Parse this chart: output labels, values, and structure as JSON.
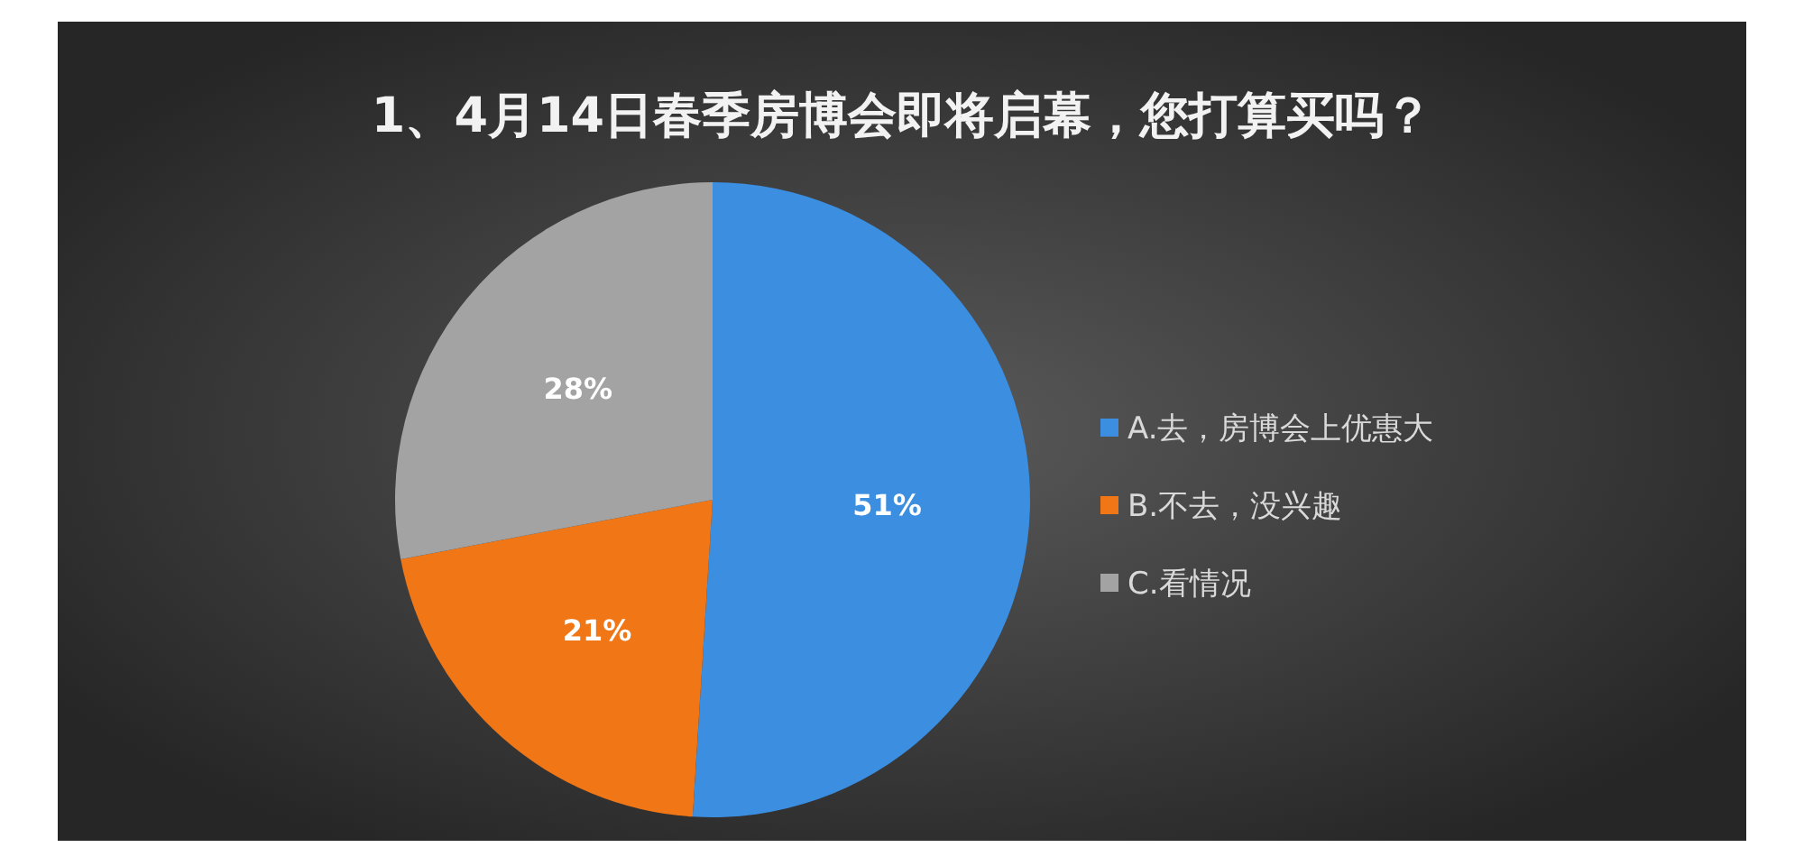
{
  "chart_data": {
    "type": "pie",
    "title": "1、4月14日春季房博会即将启幕，您打算买吗？",
    "categories": [
      "A.去，房博会上优惠大",
      "B.不去，没兴趣",
      "C.看情况"
    ],
    "values": [
      51,
      21,
      28
    ],
    "value_labels": [
      "51%",
      "21%",
      "28%"
    ],
    "colors": [
      "#3b8ee0",
      "#f07616",
      "#a3a3a3"
    ],
    "legend": "right"
  }
}
